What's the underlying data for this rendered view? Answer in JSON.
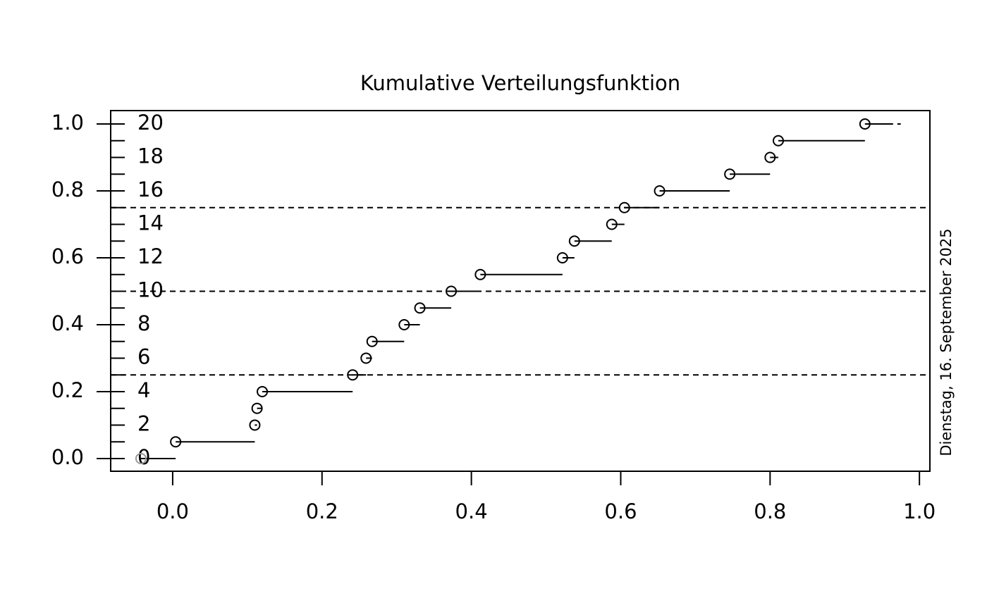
{
  "chart_data": {
    "type": "ecdf",
    "title": "Kumulative Verteilungsfunktion",
    "side_note": "Dienstag, 16. September 2025",
    "x": [
      -0.0425,
      0.004,
      0.11,
      0.113,
      0.12,
      0.241,
      0.259,
      0.267,
      0.31,
      0.331,
      0.373,
      0.412,
      0.522,
      0.538,
      0.588,
      0.605,
      0.652,
      0.746,
      0.8,
      0.811,
      0.927
    ],
    "values": [
      0.0,
      0.05,
      0.1,
      0.15,
      0.2,
      0.25,
      0.3,
      0.35,
      0.4,
      0.45,
      0.5,
      0.55,
      0.6,
      0.65,
      0.7,
      0.75,
      0.8,
      0.85,
      0.9,
      0.95,
      1.0
    ],
    "x_end": 0.975,
    "color": "#000000",
    "xlim": [
      -0.083,
      1.014
    ],
    "ylim": [
      -0.038,
      1.04
    ],
    "xticks": [
      {
        "value": 0,
        "label": "0.0"
      },
      0.2,
      0.4,
      0.6,
      0.8,
      {
        "value": 1,
        "label": "1.0"
      }
    ],
    "yticks": [
      {
        "value": 0,
        "label": "0.0"
      },
      0.2,
      0.4,
      0.6,
      0.8,
      {
        "value": 1,
        "label": "1.0"
      }
    ],
    "y2lim": [
      -0.76,
      20.8
    ],
    "y2ticks": [
      0,
      2,
      4,
      6,
      8,
      10,
      12,
      14,
      16,
      18,
      20
    ],
    "y2minor_ticks": [
      0,
      1,
      2,
      3,
      4,
      5,
      6,
      7,
      8,
      9,
      10,
      11,
      12,
      13,
      14,
      15,
      16,
      17,
      18,
      19,
      20
    ],
    "hlines": [
      0.25,
      0.5,
      0.75
    ]
  }
}
